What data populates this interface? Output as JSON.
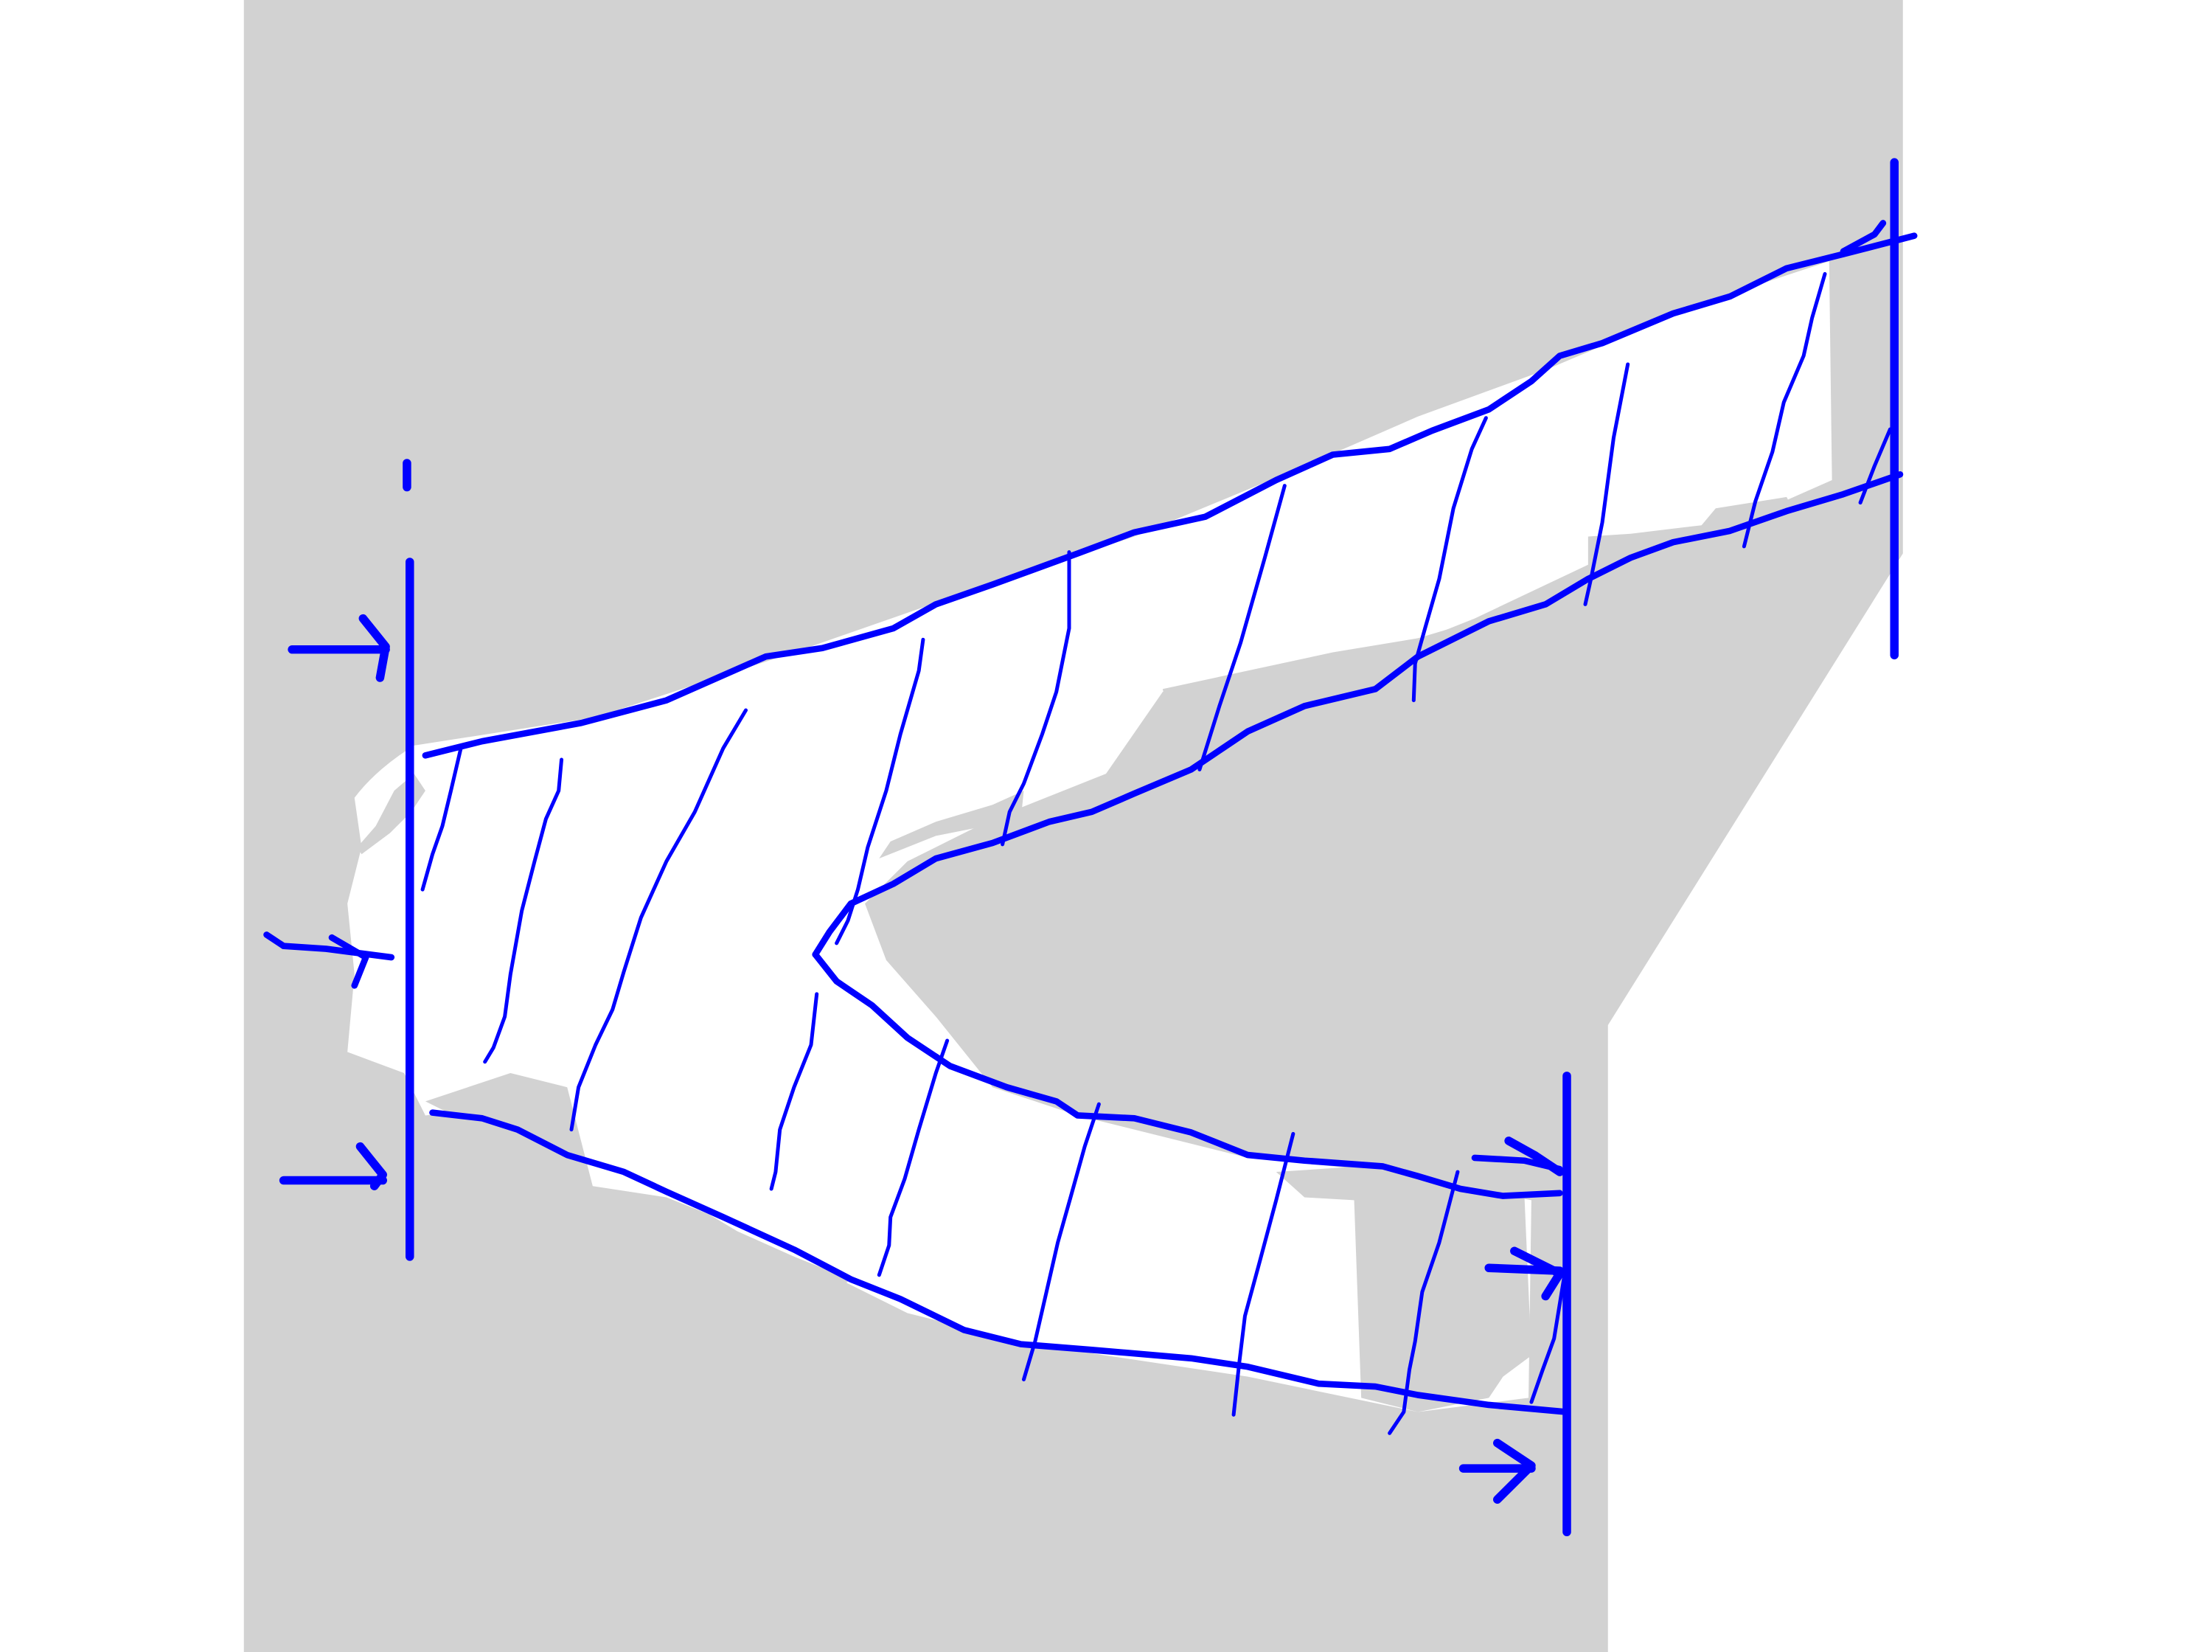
{
  "colors": {
    "background": "#ffffff",
    "domain_fill": "#d2d2d2",
    "pen": "#0000ff"
  },
  "figure": {
    "kind": "hand-drawn flow sketch",
    "boundaries": [
      "inlet-boundary-left",
      "outlet-boundary-right-upper",
      "outlet-boundary-right-lower"
    ],
    "streamlines": [
      "upper-channel-wall",
      "lower-channel-wall"
    ],
    "inflow_arrow_count": 3,
    "outflow_arrow_count": 3,
    "cross_section_count": 19,
    "text_labels": []
  }
}
